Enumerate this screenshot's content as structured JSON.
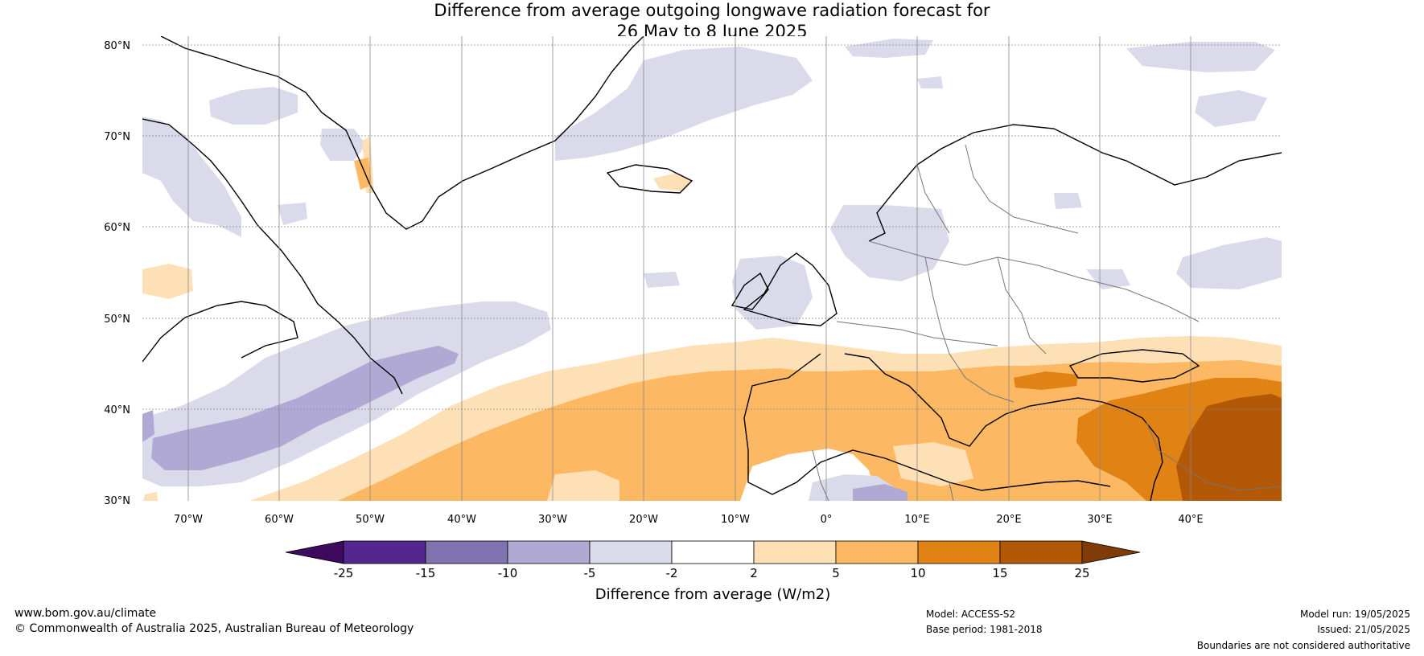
{
  "title": {
    "line1": "Difference from average outgoing longwave radiation forecast for",
    "line2": "26 May to 8 June 2025"
  },
  "map": {
    "lat_labels": [
      "80°N",
      "70°N",
      "60°N",
      "50°N",
      "40°N",
      "30°N"
    ],
    "lon_labels": [
      "70°W",
      "60°W",
      "50°W",
      "40°W",
      "30°W",
      "20°W",
      "10°W",
      "0°",
      "10°E",
      "20°E",
      "30°E",
      "40°E"
    ],
    "extent": {
      "lon": [
        -75,
        50
      ],
      "lat": [
        30,
        81
      ]
    },
    "gridlines": true
  },
  "colorbar": {
    "label": "Difference from average (W/m2)",
    "ticks": [
      "-25",
      "-15",
      "-10",
      "-5",
      "-2",
      "2",
      "5",
      "10",
      "15",
      "25"
    ],
    "colors": [
      "#3d0a5e",
      "#54278f",
      "#8073b0",
      "#b0a9d4",
      "#dadaeb",
      "#ffffff",
      "#fee0b6",
      "#fdb863",
      "#e08214",
      "#b35806",
      "#7f3b08"
    ]
  },
  "footer": {
    "website": "www.bom.gov.au/climate",
    "copyright": "© Commonwealth of Australia 2025, Australian Bureau of Meteorology",
    "model": "Model: ACCESS-S2",
    "base_period": "Base period: 1981-2018",
    "model_run": "Model run: 19/05/2025",
    "issued": "Issued: 21/05/2025",
    "disclaimer": "Boundaries are not considered authoritative"
  }
}
